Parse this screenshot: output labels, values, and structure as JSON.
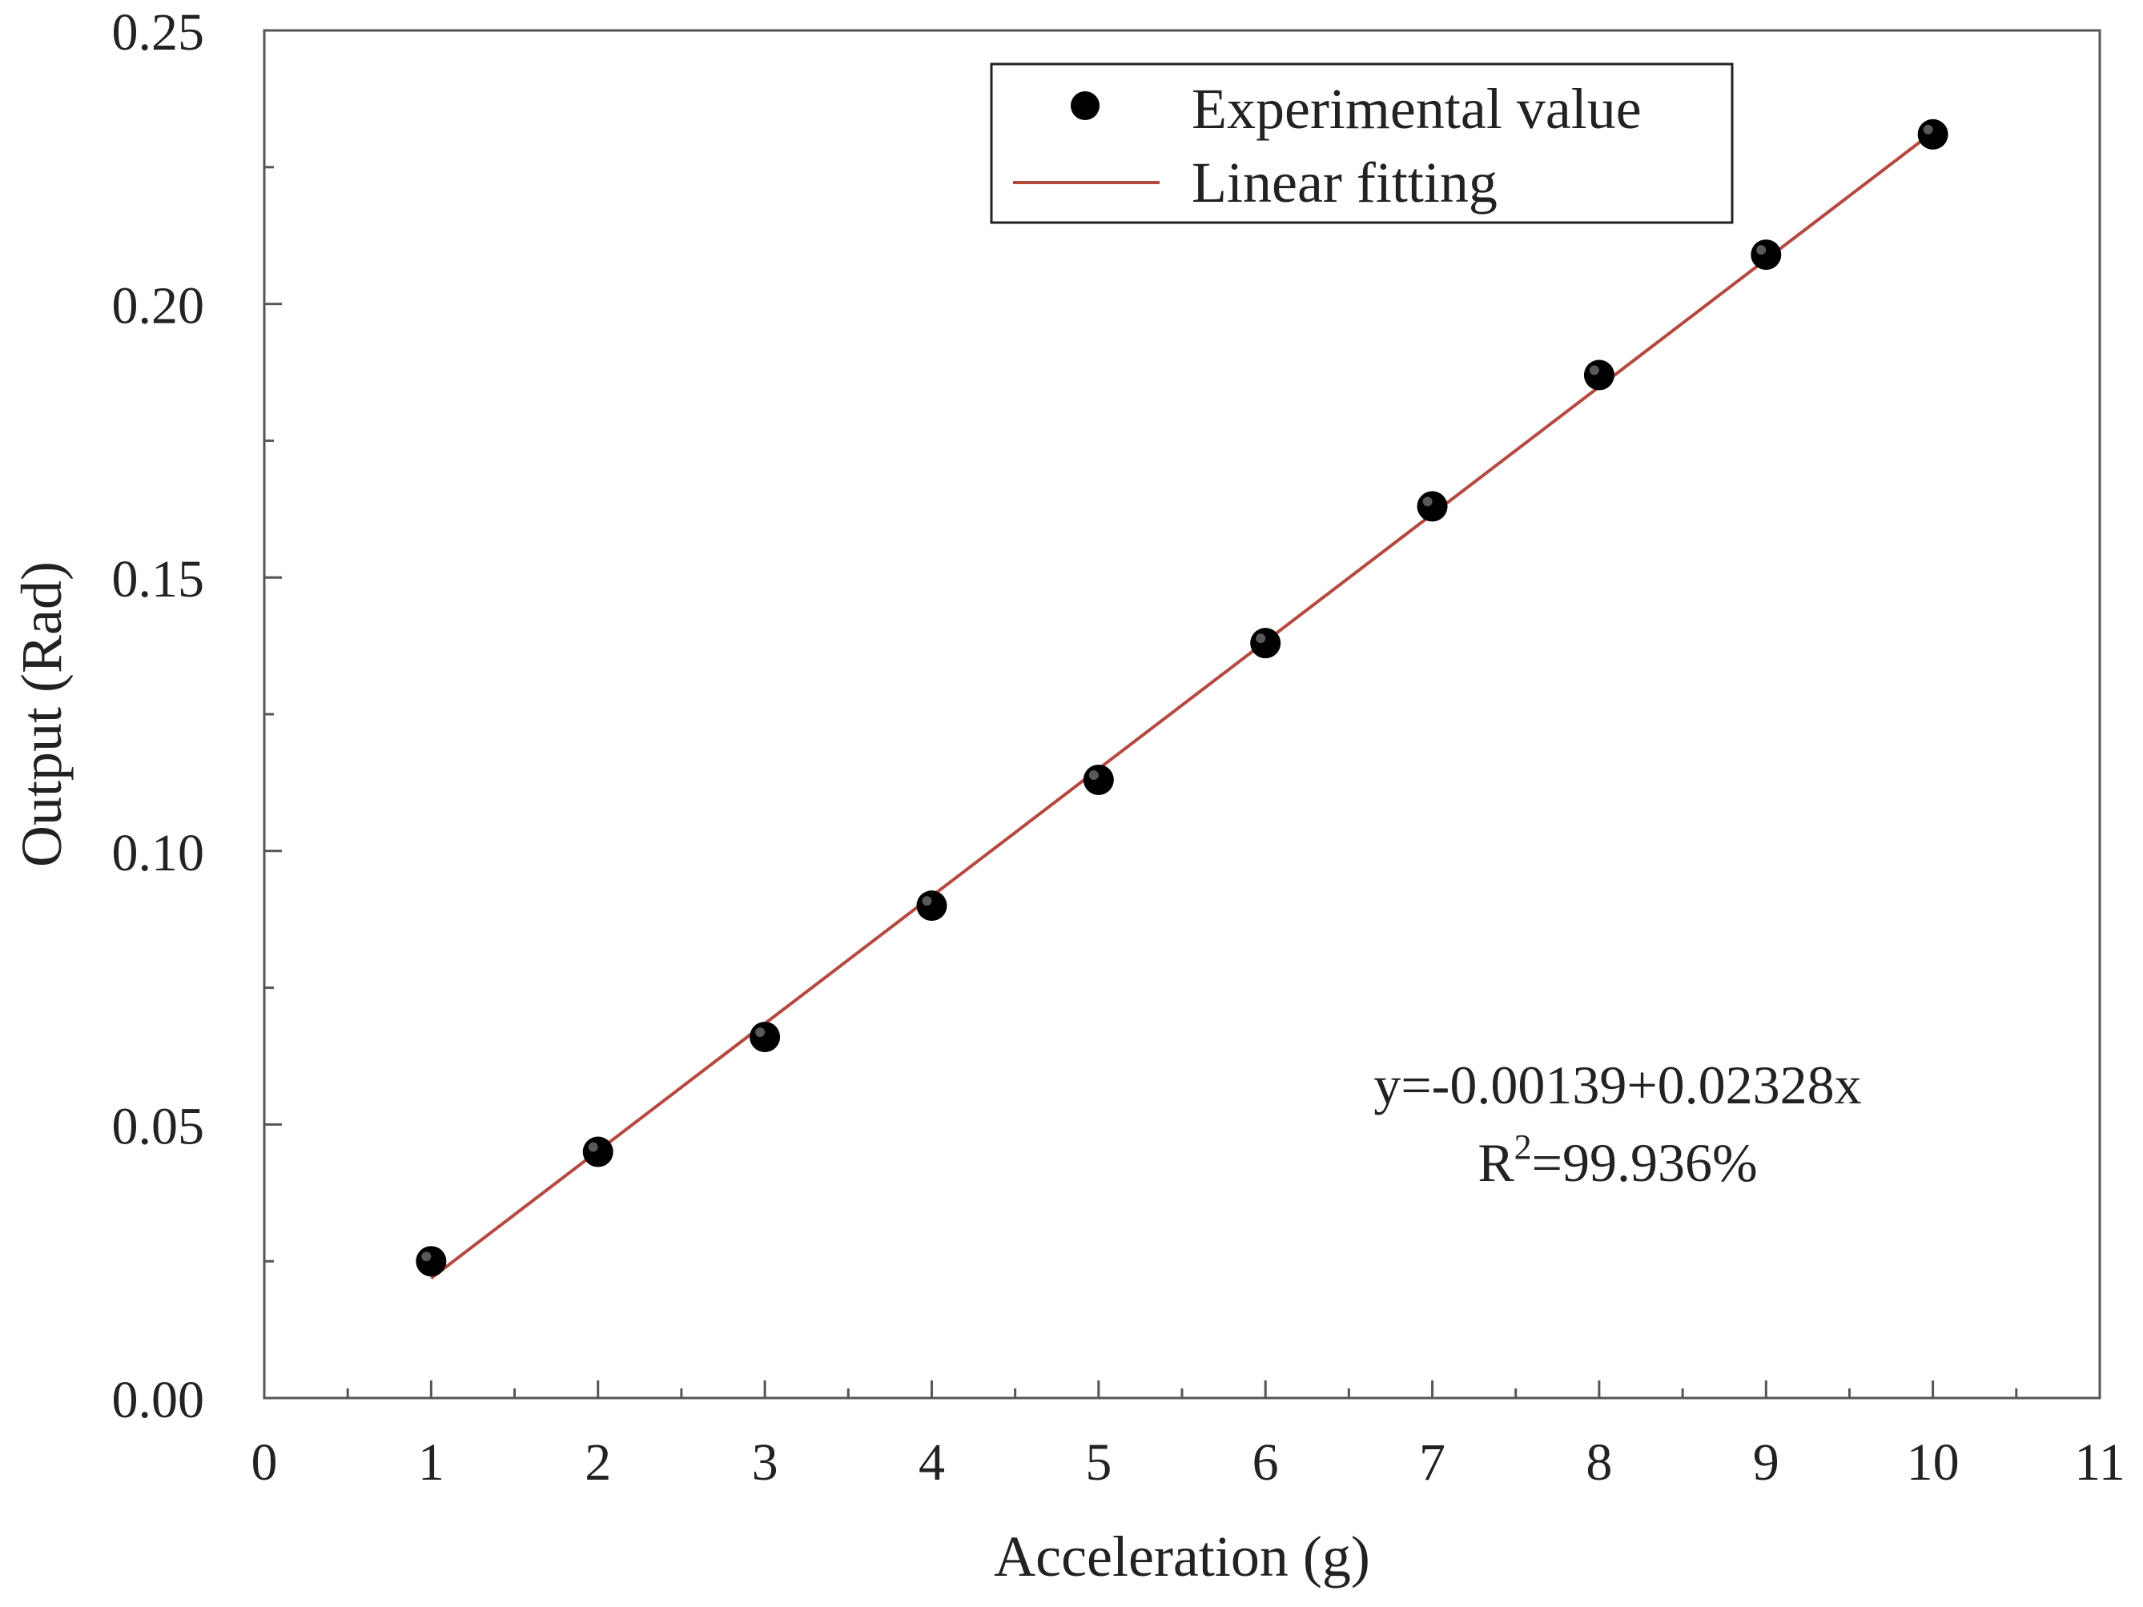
{
  "chart_data": {
    "type": "scatter",
    "title": "",
    "xlabel": "Acceleration (g)",
    "ylabel": "Output (Rad)",
    "xlim": [
      0,
      11
    ],
    "ylim": [
      0,
      0.25
    ],
    "x_ticks": [
      "0",
      "1",
      "2",
      "3",
      "4",
      "5",
      "6",
      "7",
      "8",
      "9",
      "10",
      "11"
    ],
    "y_ticks": [
      "0.00",
      "0.05",
      "0.10",
      "0.15",
      "0.20",
      "0.25"
    ],
    "grid": false,
    "legend_position": "top-right",
    "series": [
      {
        "name": "Experimental value",
        "kind": "scatter",
        "color": "#000000",
        "x": [
          1,
          2,
          3,
          4,
          5,
          6,
          7,
          8,
          9,
          10
        ],
        "y": [
          0.025,
          0.045,
          0.066,
          0.09,
          0.113,
          0.138,
          0.163,
          0.187,
          0.209,
          0.231
        ]
      },
      {
        "name": "Linear fitting",
        "kind": "line",
        "color": "#b5493f",
        "intercept": -0.00139,
        "slope": 0.02328,
        "x_range": [
          1,
          10
        ]
      }
    ],
    "annotation": {
      "equation": "y=-0.00139+0.02328x",
      "r2_prefix": "R",
      "r2_superscript": "2",
      "r2_value": "=99.936%"
    }
  }
}
